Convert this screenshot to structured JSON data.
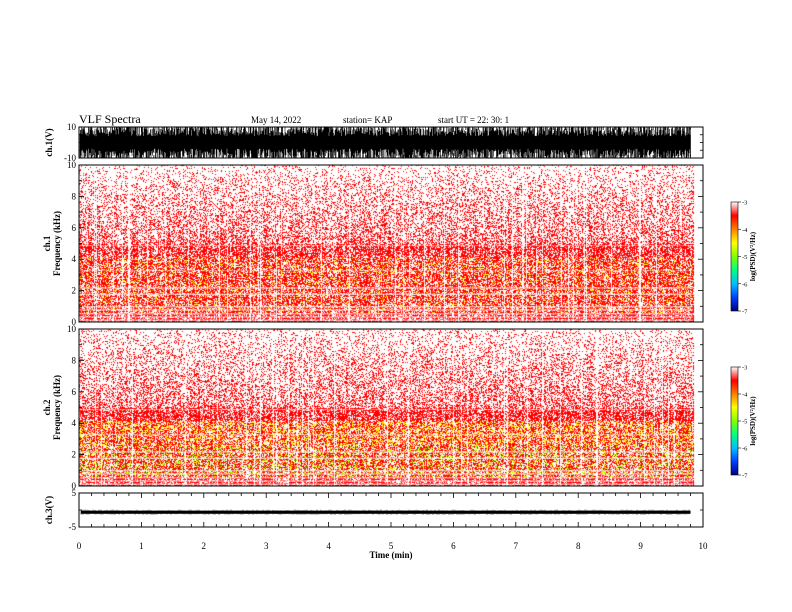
{
  "header": {
    "title": "VLF Spectra",
    "date": "May 14, 2022",
    "station": "station= KAP",
    "start_ut": "start  UT  =   22: 30: 1"
  },
  "chart_data": [
    {
      "type": "line",
      "name": "ch1-waveform",
      "ylabel": "ch.1(V)",
      "ylim": [
        -10,
        10
      ],
      "yticks": [
        "10",
        "-10"
      ],
      "xlim": [
        0,
        10
      ],
      "description_of_signal": "dense noisy waveform saturating near ±10 V, data present from 0 to ~9.8 min"
    },
    {
      "type": "heatmap",
      "name": "ch1-spectrogram",
      "ylabel": "ch.1\nFrequency  (kHz)",
      "ylim": [
        0,
        10
      ],
      "yticks": [
        "0",
        "2",
        "4",
        "6",
        "8",
        "10"
      ],
      "xlim": [
        0,
        10
      ],
      "colorbar": {
        "label": "log(PSD)(V²/Hz)",
        "range": [
          -7,
          -3
        ],
        "ticks": [
          "-3",
          "-4",
          "-5",
          "-6",
          "-7"
        ],
        "colors": [
          "#000080",
          "#0040ff",
          "#00c0ff",
          "#00ff80",
          "#80ff00",
          "#ffff00",
          "#ff8000",
          "#ff0000",
          "#ffffff"
        ]
      }
    },
    {
      "type": "heatmap",
      "name": "ch2-spectrogram",
      "ylabel": "ch.2\nFrequency  (kHz)",
      "ylim": [
        0,
        10
      ],
      "yticks": [
        "0",
        "2",
        "4",
        "6",
        "8",
        "10"
      ],
      "xlim": [
        0,
        10
      ],
      "colorbar": {
        "label": "log(PSD)(V²/Hz)",
        "range": [
          -7,
          -3
        ],
        "ticks": [
          "-3",
          "-4",
          "-5",
          "-6",
          "-7"
        ]
      }
    },
    {
      "type": "line",
      "name": "ch3-waveform",
      "ylabel": "ch.3(V)",
      "ylim": [
        -5,
        5
      ],
      "yticks": [
        "5",
        "-5"
      ],
      "xlim": [
        0,
        10
      ],
      "description_of_signal": "narrow band around -0.5 V"
    }
  ],
  "xaxis": {
    "label": "Time  (min)",
    "ticks": [
      "0",
      "1",
      "2",
      "3",
      "4",
      "5",
      "6",
      "7",
      "8",
      "9",
      "10"
    ]
  }
}
